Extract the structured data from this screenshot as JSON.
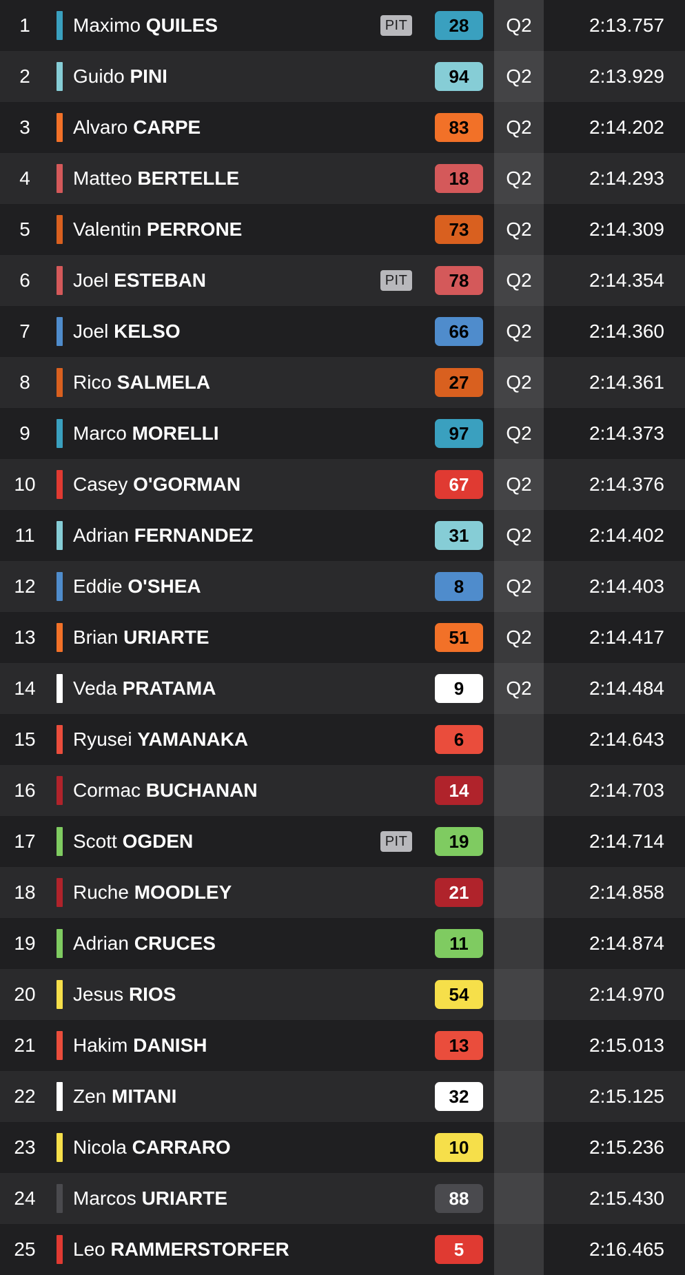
{
  "pit_label": "PIT",
  "riders": [
    {
      "pos": "1",
      "first": "Maximo",
      "last": "QUILES",
      "number": "28",
      "color": "#3aa0bf",
      "text_color": "#000000",
      "pit": true,
      "session": "Q2",
      "time": "2:13.757"
    },
    {
      "pos": "2",
      "first": "Guido",
      "last": "PINI",
      "number": "94",
      "color": "#86cdd6",
      "text_color": "#000000",
      "pit": false,
      "session": "Q2",
      "time": "2:13.929"
    },
    {
      "pos": "3",
      "first": "Alvaro",
      "last": "CARPE",
      "number": "83",
      "color": "#f27128",
      "text_color": "#000000",
      "pit": false,
      "session": "Q2",
      "time": "2:14.202"
    },
    {
      "pos": "4",
      "first": "Matteo",
      "last": "BERTELLE",
      "number": "18",
      "color": "#d4595a",
      "text_color": "#000000",
      "pit": false,
      "session": "Q2",
      "time": "2:14.293"
    },
    {
      "pos": "5",
      "first": "Valentin",
      "last": "PERRONE",
      "number": "73",
      "color": "#d9601f",
      "text_color": "#000000",
      "pit": false,
      "session": "Q2",
      "time": "2:14.309"
    },
    {
      "pos": "6",
      "first": "Joel",
      "last": "ESTEBAN",
      "number": "78",
      "color": "#d4595a",
      "text_color": "#000000",
      "pit": true,
      "session": "Q2",
      "time": "2:14.354"
    },
    {
      "pos": "7",
      "first": "Joel",
      "last": "KELSO",
      "number": "66",
      "color": "#4f8ccc",
      "text_color": "#000000",
      "pit": false,
      "session": "Q2",
      "time": "2:14.360"
    },
    {
      "pos": "8",
      "first": "Rico",
      "last": "SALMELA",
      "number": "27",
      "color": "#d9601f",
      "text_color": "#000000",
      "pit": false,
      "session": "Q2",
      "time": "2:14.361"
    },
    {
      "pos": "9",
      "first": "Marco",
      "last": "MORELLI",
      "number": "97",
      "color": "#3aa0bf",
      "text_color": "#000000",
      "pit": false,
      "session": "Q2",
      "time": "2:14.373"
    },
    {
      "pos": "10",
      "first": "Casey",
      "last": "O'GORMAN",
      "number": "67",
      "color": "#e03a32",
      "text_color": "#ffffff",
      "pit": false,
      "session": "Q2",
      "time": "2:14.376"
    },
    {
      "pos": "11",
      "first": "Adrian",
      "last": "FERNANDEZ",
      "number": "31",
      "color": "#86cdd6",
      "text_color": "#000000",
      "pit": false,
      "session": "Q2",
      "time": "2:14.402"
    },
    {
      "pos": "12",
      "first": "Eddie",
      "last": "O'SHEA",
      "number": "8",
      "color": "#4f8ccc",
      "text_color": "#000000",
      "pit": false,
      "session": "Q2",
      "time": "2:14.403"
    },
    {
      "pos": "13",
      "first": "Brian",
      "last": "URIARTE",
      "number": "51",
      "color": "#f27128",
      "text_color": "#000000",
      "pit": false,
      "session": "Q2",
      "time": "2:14.417"
    },
    {
      "pos": "14",
      "first": "Veda",
      "last": "PRATAMA",
      "number": "9",
      "color": "#ffffff",
      "text_color": "#000000",
      "pit": false,
      "session": "Q2",
      "time": "2:14.484"
    },
    {
      "pos": "15",
      "first": "Ryusei",
      "last": "YAMANAKA",
      "number": "6",
      "color": "#ea4d3c",
      "text_color": "#000000",
      "pit": false,
      "session": "",
      "time": "2:14.643"
    },
    {
      "pos": "16",
      "first": "Cormac",
      "last": "BUCHANAN",
      "number": "14",
      "color": "#b0232b",
      "text_color": "#ffffff",
      "pit": false,
      "session": "",
      "time": "2:14.703"
    },
    {
      "pos": "17",
      "first": "Scott",
      "last": "OGDEN",
      "number": "19",
      "color": "#7fcb61",
      "text_color": "#000000",
      "pit": true,
      "session": "",
      "time": "2:14.714"
    },
    {
      "pos": "18",
      "first": "Ruche",
      "last": "MOODLEY",
      "number": "21",
      "color": "#b0232b",
      "text_color": "#ffffff",
      "pit": false,
      "session": "",
      "time": "2:14.858"
    },
    {
      "pos": "19",
      "first": "Adrian",
      "last": "CRUCES",
      "number": "11",
      "color": "#7fcb61",
      "text_color": "#000000",
      "pit": false,
      "session": "",
      "time": "2:14.874"
    },
    {
      "pos": "20",
      "first": "Jesus",
      "last": "RIOS",
      "number": "54",
      "color": "#f6df4a",
      "text_color": "#000000",
      "pit": false,
      "session": "",
      "time": "2:14.970"
    },
    {
      "pos": "21",
      "first": "Hakim",
      "last": "DANISH",
      "number": "13",
      "color": "#ea4d3c",
      "text_color": "#000000",
      "pit": false,
      "session": "",
      "time": "2:15.013"
    },
    {
      "pos": "22",
      "first": "Zen",
      "last": "MITANI",
      "number": "32",
      "color": "#ffffff",
      "text_color": "#000000",
      "pit": false,
      "session": "",
      "time": "2:15.125"
    },
    {
      "pos": "23",
      "first": "Nicola",
      "last": "CARRARO",
      "number": "10",
      "color": "#f6df4a",
      "text_color": "#000000",
      "pit": false,
      "session": "",
      "time": "2:15.236"
    },
    {
      "pos": "24",
      "first": "Marcos",
      "last": "URIARTE",
      "number": "88",
      "color": "#4a4a4e",
      "text_color": "#ffffff",
      "pit": false,
      "session": "",
      "time": "2:15.430"
    },
    {
      "pos": "25",
      "first": "Leo",
      "last": "RAMMERSTORFER",
      "number": "5",
      "color": "#e03a32",
      "text_color": "#ffffff",
      "pit": false,
      "session": "",
      "time": "2:16.465"
    }
  ]
}
